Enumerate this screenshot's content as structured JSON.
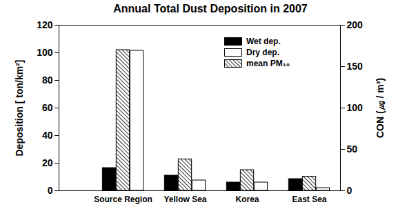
{
  "chart_data": {
    "type": "bar",
    "title": "Annual Total Dust Deposition in 2007",
    "categories": [
      "Source Region",
      "Yellow Sea",
      "Korea",
      "East Sea"
    ],
    "y_label": "Deposition [ ton/km²]",
    "y2_label": "CON (㎍ / m³)",
    "series": [
      {
        "name": "Wet dep.",
        "color": "#000000",
        "values": [
          16.5,
          11,
          6,
          8.5
        ]
      },
      {
        "name": "mean PM₁₀",
        "color": "#000000",
        "line_style": "hatched",
        "axis": "y2",
        "values": [
          170,
          38,
          25,
          17
        ]
      },
      {
        "name": "Dry dep.",
        "color": "#ffffff",
        "values": [
          101.5,
          7.5,
          6,
          2
        ]
      }
    ],
    "ylim": [
      0,
      120
    ],
    "yticks": [
      0,
      20,
      40,
      60,
      80,
      100,
      120
    ],
    "y2lim": [
      0,
      200
    ],
    "y2ticks": [
      0,
      50,
      100,
      150,
      200
    ],
    "legend": "top-right"
  }
}
